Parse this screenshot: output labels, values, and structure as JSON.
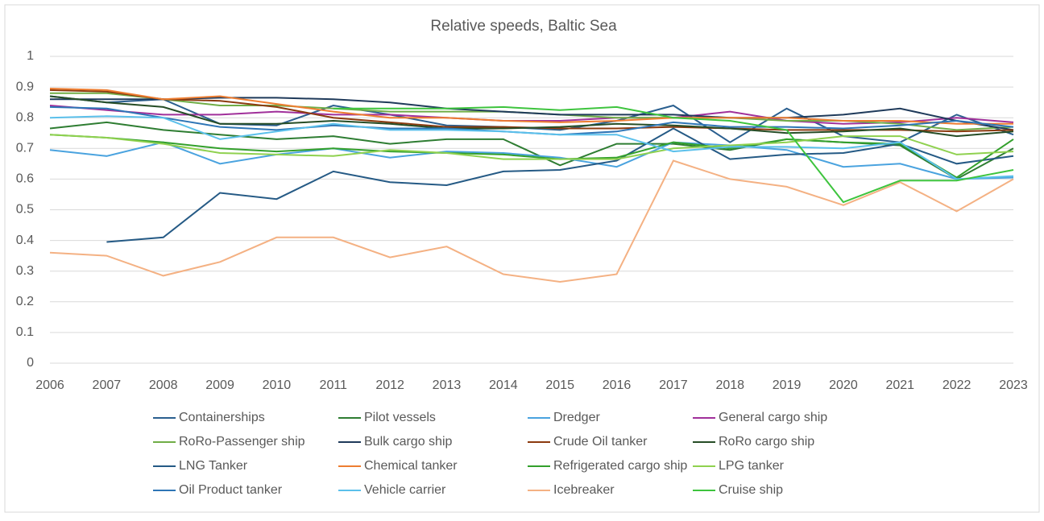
{
  "chart_data": {
    "type": "line",
    "title": "Relative speeds, Baltic Sea",
    "categories": [
      "2006",
      "2007",
      "2008",
      "2009",
      "2010",
      "2011",
      "2012",
      "2013",
      "2014",
      "2015",
      "2016",
      "2017",
      "2018",
      "2019",
      "2020",
      "2021",
      "2022",
      "2023"
    ],
    "ylim": [
      0,
      1
    ],
    "yticks": [
      0,
      0.1,
      0.2,
      0.3,
      0.4,
      0.5,
      0.6,
      0.7,
      0.8,
      0.9,
      1
    ],
    "grid": true,
    "series": [
      {
        "name": "Containerships",
        "color": "#2a5f8f",
        "values": [
          0.87,
          0.85,
          0.86,
          0.78,
          0.775,
          0.84,
          0.81,
          0.775,
          0.77,
          0.76,
          0.79,
          0.84,
          0.72,
          0.83,
          0.74,
          0.72,
          0.81,
          0.745
        ]
      },
      {
        "name": "Pilot vessels",
        "color": "#2e7d32",
        "values": [
          0.765,
          0.785,
          0.76,
          0.745,
          0.73,
          0.74,
          0.715,
          0.73,
          0.73,
          0.645,
          0.715,
          0.715,
          0.695,
          0.73,
          0.72,
          0.71,
          0.6,
          0.7
        ]
      },
      {
        "name": "Dredger",
        "color": "#4aa3df",
        "values": [
          0.695,
          0.675,
          0.72,
          0.65,
          0.68,
          0.7,
          0.67,
          0.69,
          0.685,
          0.67,
          0.64,
          0.72,
          0.71,
          0.695,
          0.64,
          0.65,
          0.6,
          0.605
        ]
      },
      {
        "name": "General cargo ship",
        "color": "#a0309a",
        "values": [
          0.84,
          0.825,
          0.81,
          0.81,
          0.82,
          0.81,
          0.81,
          0.8,
          0.79,
          0.79,
          0.8,
          0.8,
          0.82,
          0.79,
          0.78,
          0.785,
          0.8,
          0.785
        ]
      },
      {
        "name": "RoRo-Passenger ship",
        "color": "#70ad47",
        "values": [
          0.88,
          0.88,
          0.86,
          0.84,
          0.84,
          0.83,
          0.82,
          0.82,
          0.82,
          0.81,
          0.8,
          0.8,
          0.8,
          0.79,
          0.79,
          0.78,
          0.76,
          0.77
        ]
      },
      {
        "name": "Bulk cargo ship",
        "color": "#1f3a5a",
        "values": [
          0.86,
          0.86,
          0.86,
          0.865,
          0.865,
          0.86,
          0.85,
          0.83,
          0.82,
          0.81,
          0.81,
          0.81,
          0.8,
          0.8,
          0.81,
          0.83,
          0.79,
          0.76
        ]
      },
      {
        "name": "Crude Oil tanker",
        "color": "#8b3a0f",
        "values": [
          0.89,
          0.885,
          0.86,
          0.855,
          0.835,
          0.8,
          0.785,
          0.77,
          0.77,
          0.765,
          0.765,
          0.77,
          0.765,
          0.76,
          0.76,
          0.76,
          0.755,
          0.76
        ]
      },
      {
        "name": "RoRo cargo ship",
        "color": "#264d26",
        "values": [
          0.87,
          0.85,
          0.835,
          0.78,
          0.78,
          0.79,
          0.78,
          0.765,
          0.765,
          0.77,
          0.78,
          0.775,
          0.765,
          0.75,
          0.755,
          0.765,
          0.74,
          0.755
        ]
      },
      {
        "name": "LNG Tanker",
        "color": "#255a85",
        "values": [
          null,
          0.395,
          0.41,
          0.555,
          0.535,
          0.625,
          0.59,
          0.58,
          0.625,
          0.63,
          0.66,
          0.765,
          0.665,
          0.68,
          0.685,
          0.715,
          0.65,
          0.675
        ]
      },
      {
        "name": "Chemical tanker",
        "color": "#ed7d31",
        "values": [
          0.895,
          0.89,
          0.86,
          0.87,
          0.845,
          0.82,
          0.8,
          0.8,
          0.79,
          0.785,
          0.79,
          0.8,
          0.8,
          0.8,
          0.79,
          0.79,
          0.78,
          0.78
        ]
      },
      {
        "name": "Refrigerated cargo ship",
        "color": "#33a02c",
        "values": [
          0.745,
          0.735,
          0.72,
          0.7,
          0.69,
          0.7,
          0.69,
          0.685,
          0.68,
          0.665,
          0.67,
          0.72,
          0.7,
          0.73,
          0.72,
          0.715,
          0.605,
          0.73
        ]
      },
      {
        "name": "LPG tanker",
        "color": "#8fd14f",
        "values": [
          0.745,
          0.735,
          0.715,
          0.685,
          0.68,
          0.675,
          0.695,
          0.685,
          0.665,
          0.665,
          0.665,
          0.7,
          0.71,
          0.72,
          0.74,
          0.74,
          0.68,
          0.69
        ]
      },
      {
        "name": "Oil Product tanker",
        "color": "#2e75b6",
        "values": [
          0.835,
          0.83,
          0.8,
          0.77,
          0.76,
          0.775,
          0.765,
          0.765,
          0.755,
          0.745,
          0.755,
          0.785,
          0.77,
          0.77,
          0.765,
          0.775,
          0.79,
          0.77
        ]
      },
      {
        "name": "Vehicle carrier",
        "color": "#5bc0eb",
        "values": [
          0.8,
          0.805,
          0.8,
          0.73,
          0.755,
          0.78,
          0.76,
          0.76,
          0.755,
          0.745,
          0.745,
          0.69,
          0.705,
          0.705,
          0.7,
          0.72,
          0.6,
          0.61
        ]
      },
      {
        "name": "Icebreaker",
        "color": "#f4b183",
        "values": [
          0.36,
          0.35,
          0.285,
          0.33,
          0.41,
          0.41,
          0.345,
          0.38,
          0.29,
          0.265,
          0.29,
          0.66,
          0.6,
          0.575,
          0.515,
          0.59,
          0.495,
          0.6
        ]
      },
      {
        "name": "Cruise ship",
        "color": "#3ec43e",
        "values": [
          null,
          null,
          null,
          null,
          null,
          0.83,
          0.83,
          0.83,
          0.835,
          0.825,
          0.835,
          0.8,
          0.79,
          0.76,
          0.525,
          0.595,
          0.595,
          0.63
        ]
      }
    ]
  }
}
